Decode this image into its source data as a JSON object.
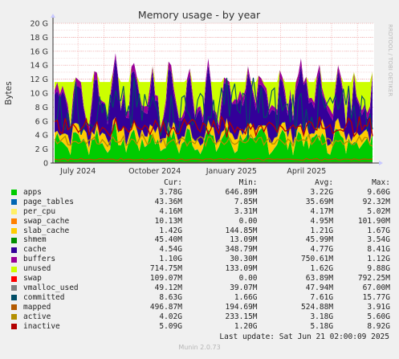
{
  "chart_data": {
    "type": "area",
    "title": "Memory usage - by year",
    "ylabel": "Bytes",
    "watermark": "RRDTOOL / TOBI OETIKER",
    "ylim": [
      0,
      20
    ],
    "yunit": "G",
    "yticks": [
      "0",
      "2 G",
      "4 G",
      "6 G",
      "8 G",
      "10 G",
      "12 G",
      "14 G",
      "16 G",
      "18 G",
      "20 G"
    ],
    "xlabels": [
      "July 2024",
      "October 2024",
      "January 2025",
      "April 2025"
    ],
    "x_range": [
      "2024-06-01",
      "2025-06-21"
    ],
    "x_tick_dates": [
      "2024-07-01",
      "2024-10-01",
      "2025-01-01",
      "2025-04-01"
    ],
    "grid": true,
    "columns": [
      "Cur:",
      "Min:",
      "Avg:",
      "Max:"
    ],
    "series": [
      {
        "name": "apps",
        "color": "#00cc00",
        "cur": "3.78G",
        "min": "646.89M",
        "avg": "3.22G",
        "max": "9.60G",
        "avg_gb": 3.22
      },
      {
        "name": "page_tables",
        "color": "#0066b3",
        "cur": "43.36M",
        "min": "7.85M",
        "avg": "35.69M",
        "max": "92.32M",
        "avg_gb": 0.035
      },
      {
        "name": "per_cpu",
        "color": "#ffef66",
        "cur": "4.16M",
        "min": "3.31M",
        "avg": "4.17M",
        "max": "5.02M",
        "avg_gb": 0.004
      },
      {
        "name": "swap_cache",
        "color": "#ff8000",
        "cur": "10.13M",
        "min": "0.00",
        "avg": "4.95M",
        "max": "101.90M",
        "avg_gb": 0.005
      },
      {
        "name": "slab_cache",
        "color": "#ffcc00",
        "cur": "1.42G",
        "min": "144.85M",
        "avg": "1.21G",
        "max": "1.67G",
        "avg_gb": 1.21
      },
      {
        "name": "shmem",
        "color": "#008f00",
        "cur": "45.40M",
        "min": "13.09M",
        "avg": "45.99M",
        "max": "3.54G",
        "avg_gb": 0.046
      },
      {
        "name": "cache",
        "color": "#330099",
        "cur": "4.54G",
        "min": "348.79M",
        "avg": "4.77G",
        "max": "8.41G",
        "avg_gb": 4.77
      },
      {
        "name": "buffers",
        "color": "#990099",
        "cur": "1.10G",
        "min": "30.30M",
        "avg": "750.61M",
        "max": "1.12G",
        "avg_gb": 0.75
      },
      {
        "name": "unused",
        "color": "#ccff00",
        "cur": "714.75M",
        "min": "133.09M",
        "avg": "1.62G",
        "max": "9.88G",
        "avg_gb": 1.62
      },
      {
        "name": "swap",
        "color": "#ff0000",
        "cur": "109.07M",
        "min": "0.00",
        "avg": "63.89M",
        "max": "792.25M",
        "avg_gb": 0.064
      },
      {
        "name": "vmalloc_used",
        "color": "#808080",
        "cur": "49.12M",
        "min": "39.07M",
        "avg": "47.94M",
        "max": "67.00M",
        "avg_gb": 0.048
      },
      {
        "name": "committed",
        "color": "#004d66",
        "cur": "8.63G",
        "min": "1.66G",
        "avg": "7.61G",
        "max": "15.77G",
        "avg_gb": 7.61
      },
      {
        "name": "mapped",
        "color": "#b35a00",
        "cur": "496.87M",
        "min": "194.69M",
        "avg": "524.88M",
        "max": "3.91G",
        "avg_gb": 0.525
      },
      {
        "name": "active",
        "color": "#b38f00",
        "cur": "4.02G",
        "min": "233.15M",
        "avg": "3.18G",
        "max": "5.60G",
        "avg_gb": 3.18
      },
      {
        "name": "inactive",
        "color": "#b30000",
        "cur": "5.09G",
        "min": "1.20G",
        "avg": "5.18G",
        "max": "8.92G",
        "avg_gb": 5.18
      }
    ]
  },
  "footer": {
    "last_update": "Last update:  Sat Jun 21 02:00:09 2025",
    "generator": "Munin 2.0.73"
  }
}
